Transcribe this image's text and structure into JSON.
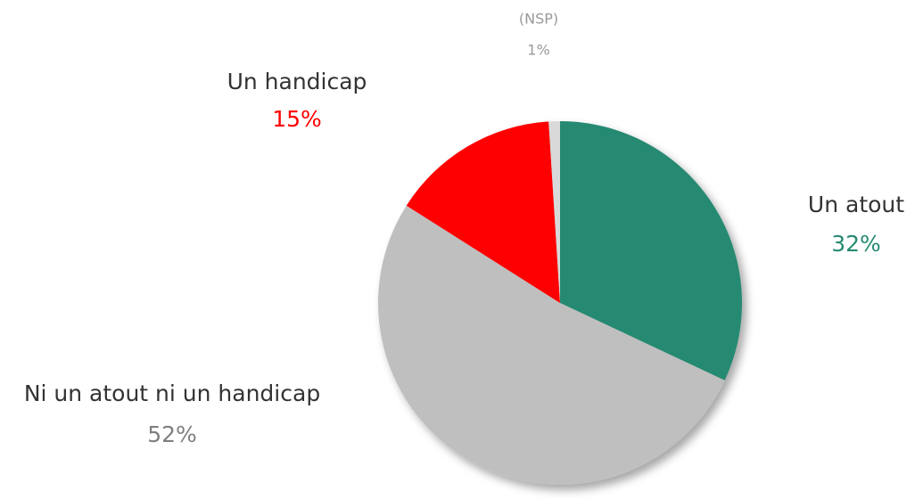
{
  "chart_data": {
    "type": "pie",
    "categories": [
      "Un atout",
      "Ni un atout ni un handicap",
      "Un handicap",
      "(NSP)"
    ],
    "values": [
      32,
      52,
      15,
      1
    ],
    "value_labels": [
      "32%",
      "52%",
      "15%",
      "1%"
    ],
    "colors": [
      "#268a72",
      "#bfbfbf",
      "#ff0000",
      "#d9d9d9"
    ]
  }
}
